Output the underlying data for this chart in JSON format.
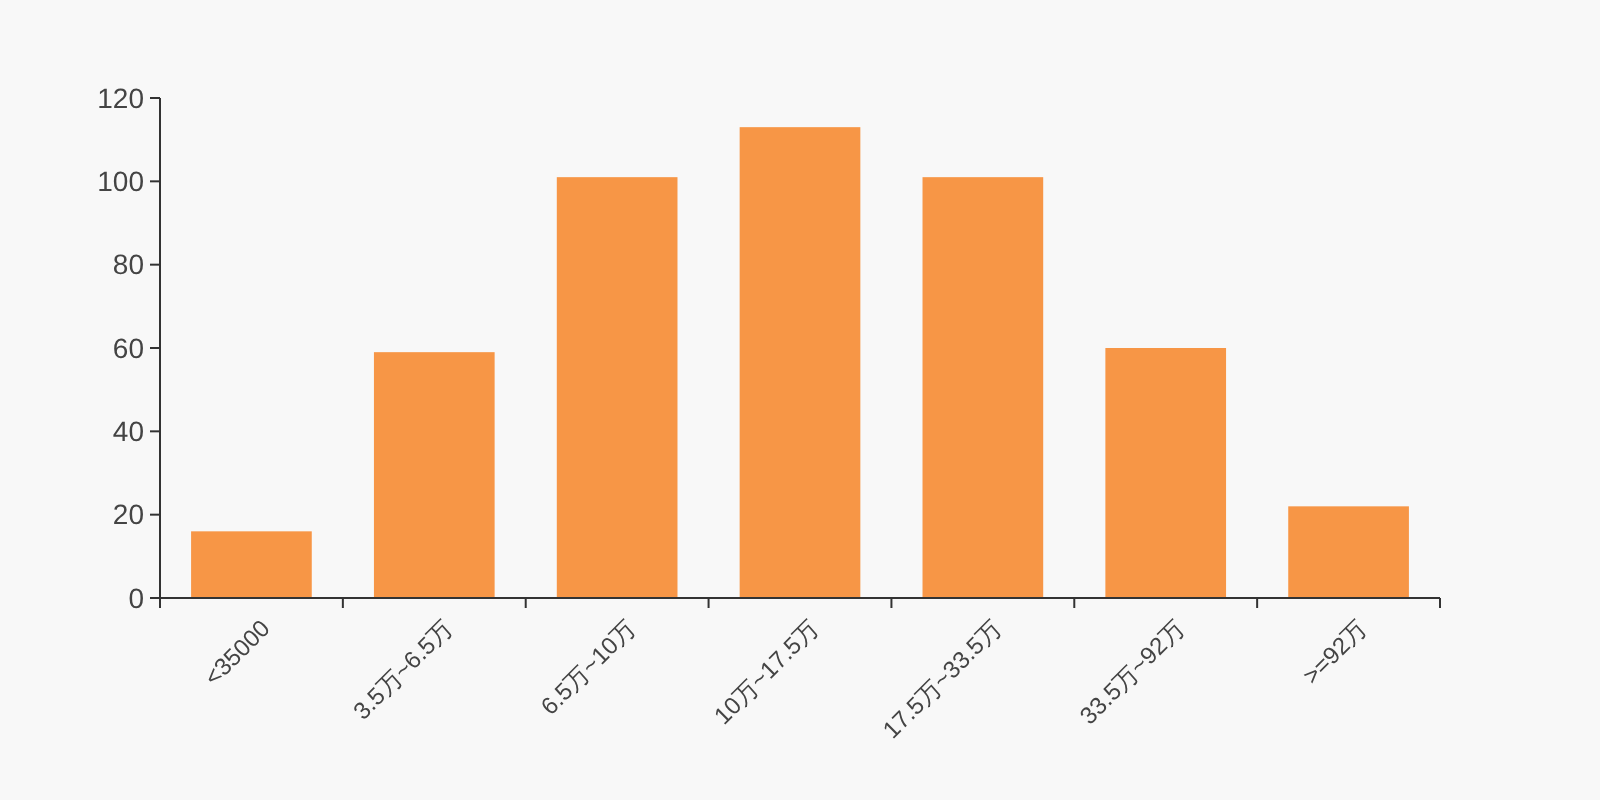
{
  "chart_data": {
    "type": "bar",
    "categories": [
      "<35000",
      "3.5万~6.5万",
      "6.5万~10万",
      "10万~17.5万",
      "17.5万~33.5万",
      "33.5万~92万",
      ">=92万"
    ],
    "values": [
      16,
      59,
      101,
      113,
      101,
      60,
      22
    ],
    "color": "#f79646",
    "ylim": [
      0,
      120
    ],
    "yticks": [
      0,
      20,
      40,
      60,
      80,
      100,
      120
    ],
    "grid": false
  }
}
